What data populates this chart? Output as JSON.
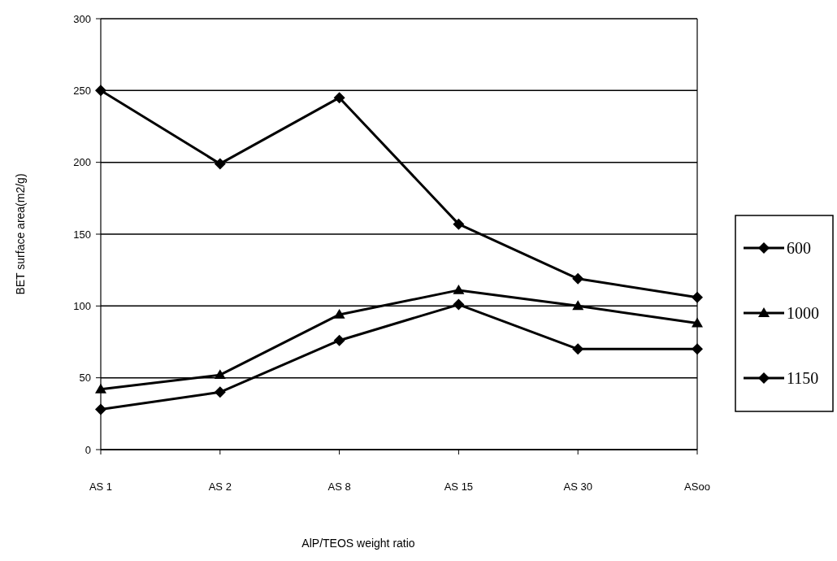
{
  "chart_data": {
    "type": "line",
    "xlabel": "AlP/TEOS weight ratio",
    "ylabel": "BET surface area(m2/g)",
    "categories": [
      "AS 1",
      "AS 2",
      "AS 8",
      "AS 15",
      "AS 30",
      "ASoo"
    ],
    "series": [
      {
        "name": "600",
        "color": "#000000",
        "marker": "diamond",
        "values": [
          250,
          199,
          245,
          157,
          119,
          106
        ]
      },
      {
        "name": "1000",
        "color": "#000000",
        "marker": "triangle",
        "values": [
          42,
          52,
          94,
          111,
          100,
          88
        ]
      },
      {
        "name": "1150",
        "color": "#000000",
        "marker": "diamond",
        "values": [
          28,
          40,
          76,
          101,
          70,
          70
        ]
      }
    ],
    "ylim": [
      0,
      300
    ],
    "yticks": [
      0,
      50,
      100,
      150,
      200,
      250,
      300
    ],
    "grid": "y",
    "legend": "right"
  }
}
